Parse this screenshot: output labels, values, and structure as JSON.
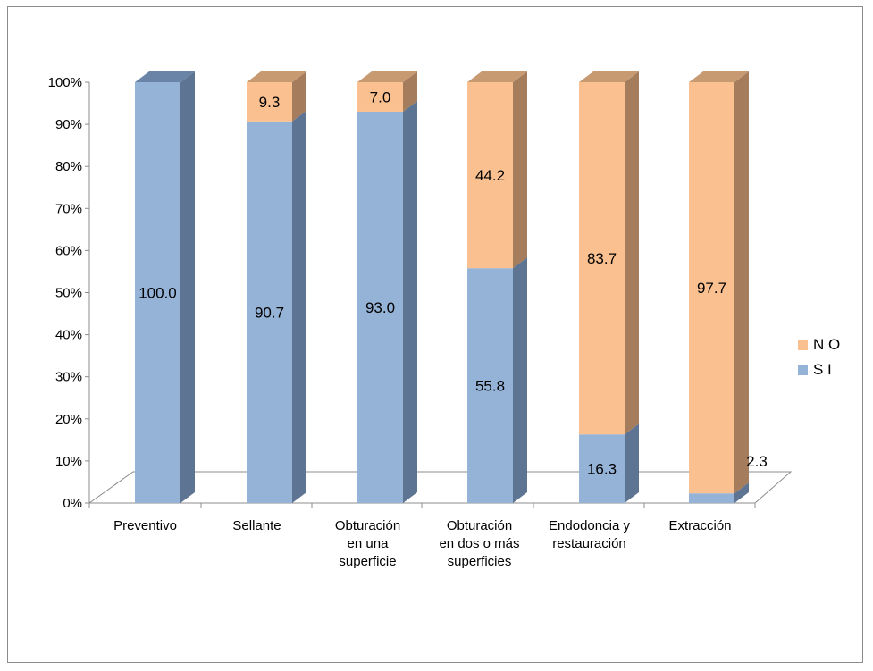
{
  "chart_data": {
    "type": "bar",
    "stacked": true,
    "percent": true,
    "three_d": true,
    "categories": [
      [
        "Preventivo"
      ],
      [
        "Sellante"
      ],
      [
        "Obturación",
        "en una",
        "superficie"
      ],
      [
        "Obturación",
        "en dos o más",
        "superficies"
      ],
      [
        "Endodoncia y",
        "restauración"
      ],
      [
        "Extracción"
      ]
    ],
    "series": [
      {
        "name": "S I",
        "values": [
          100.0,
          90.7,
          93.0,
          55.8,
          16.3,
          2.3
        ],
        "labels": [
          "100.0",
          "90.7",
          "93.0",
          "55.8",
          "16.3",
          "2.3"
        ],
        "colors": {
          "front": "#95B3D7",
          "side": "#5E7493",
          "top": "#6A84A8"
        }
      },
      {
        "name": "N O",
        "values": [
          0,
          9.3,
          7.0,
          44.2,
          83.7,
          97.7
        ],
        "labels": [
          "",
          "9.3",
          "7.0",
          "44.2",
          "83.7",
          "97.7"
        ],
        "colors": {
          "front": "#FAC090",
          "side": "#A57D5D",
          "top": "#C79A72"
        }
      }
    ],
    "yticks": [
      "0%",
      "10%",
      "20%",
      "30%",
      "40%",
      "50%",
      "60%",
      "70%",
      "80%",
      "90%",
      "100%"
    ],
    "ylim": [
      0,
      100
    ],
    "legend_position": "right",
    "legend": [
      {
        "name": "N O",
        "color": "#FAC090"
      },
      {
        "name": "S I",
        "color": "#95B3D7"
      }
    ],
    "grid": false
  }
}
